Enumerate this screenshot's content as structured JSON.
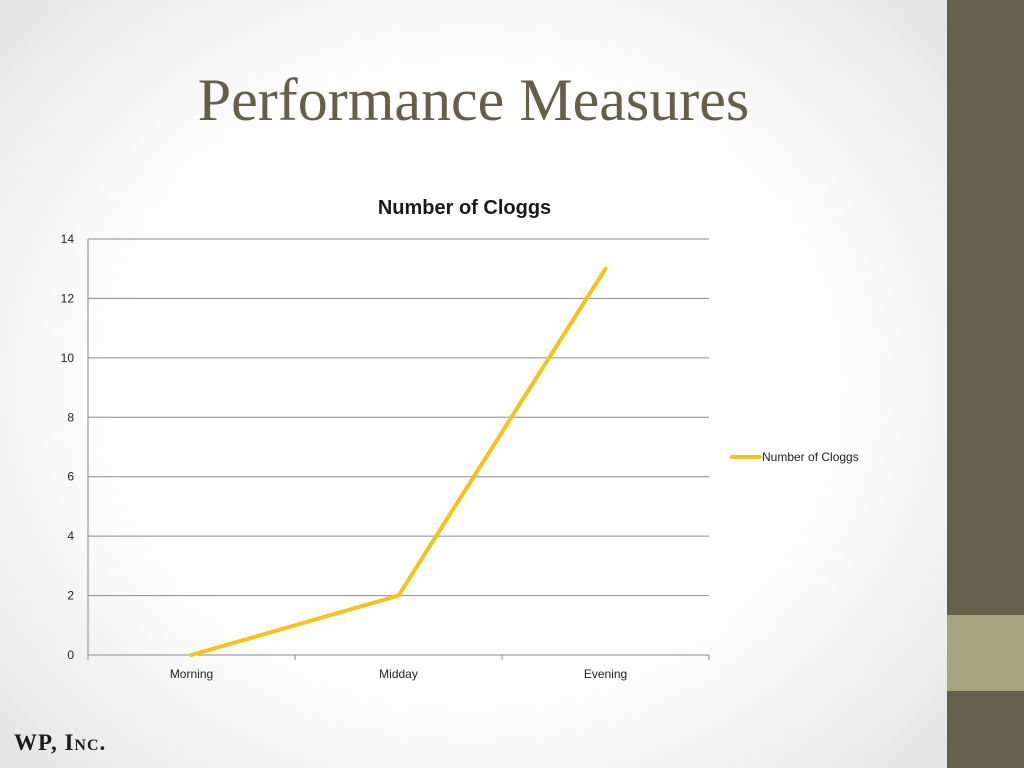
{
  "slide": {
    "title": "Performance Measures",
    "footer": "WP, Inc."
  },
  "colors": {
    "bar": "#665e48",
    "bar_accent": "#a8a37e",
    "title": "#665e48",
    "series": "#f5c21b",
    "gridline": "#8a8a8a"
  },
  "chart_data": {
    "type": "line",
    "title": "Number of Cloggs",
    "categories": [
      "Morning",
      "Midday",
      "Evening"
    ],
    "series": [
      {
        "name": "Number of Cloggs",
        "values": [
          0,
          2,
          13
        ]
      }
    ],
    "ylim": [
      0,
      14
    ],
    "yticks": [
      0,
      2,
      4,
      6,
      8,
      10,
      12,
      14
    ],
    "grid": true,
    "legend": "right"
  }
}
